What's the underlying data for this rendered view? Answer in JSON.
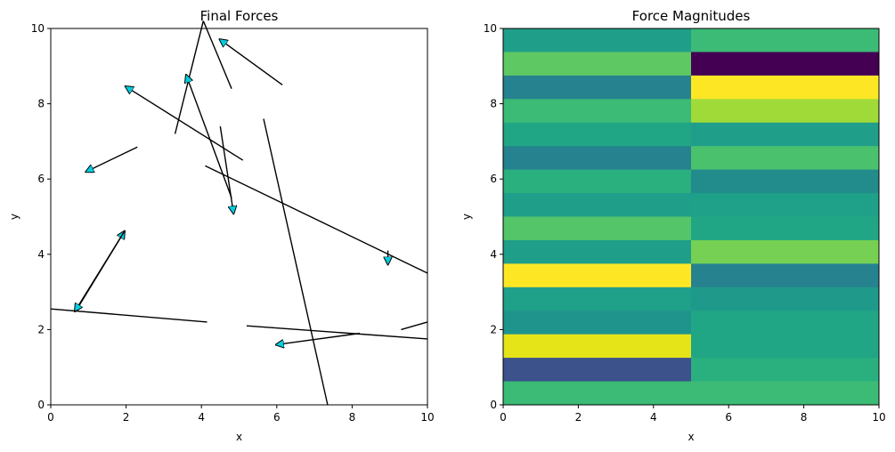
{
  "chart_data": [
    {
      "type": "quiver",
      "title": "Final Forces",
      "xlabel": "x",
      "ylabel": "y",
      "xlim": [
        0,
        10
      ],
      "ylim": [
        0,
        10
      ],
      "xticks": [
        0,
        2,
        4,
        6,
        8,
        10
      ],
      "yticks": [
        0,
        2,
        4,
        6,
        8,
        10
      ],
      "arrow_color": "#00cfe0",
      "arrows": [
        {
          "x1": 4.8,
          "y1": 8.4,
          "x2": 4.05,
          "y2": 10.2,
          "head": false
        },
        {
          "x1": 4.05,
          "y1": 10.2,
          "x2": 3.3,
          "y2": 7.2,
          "head": false
        },
        {
          "x1": 6.15,
          "y1": 8.5,
          "x2": 4.5,
          "y2": 9.7,
          "head": true
        },
        {
          "x1": 4.8,
          "y1": 5.5,
          "x2": 3.6,
          "y2": 8.75,
          "head": true
        },
        {
          "x1": 5.1,
          "y1": 6.5,
          "x2": 2.0,
          "y2": 8.45,
          "head": true
        },
        {
          "x1": 4.5,
          "y1": 7.4,
          "x2": 4.85,
          "y2": 5.1,
          "head": true
        },
        {
          "x1": 2.3,
          "y1": 6.85,
          "x2": 0.95,
          "y2": 6.2,
          "head": true
        },
        {
          "x1": 4.1,
          "y1": 6.35,
          "x2": 10.0,
          "y2": 3.5,
          "head": false
        },
        {
          "x1": 5.65,
          "y1": 7.6,
          "x2": 7.35,
          "y2": 0.0,
          "head": false
        },
        {
          "x1": 8.95,
          "y1": 4.1,
          "x2": 8.95,
          "y2": 3.75,
          "head": true
        },
        {
          "x1": 0.7,
          "y1": 2.55,
          "x2": 1.95,
          "y2": 4.6,
          "head": true
        },
        {
          "x1": 1.95,
          "y1": 4.6,
          "x2": 0.65,
          "y2": 2.5,
          "head": true
        },
        {
          "x1": 0.0,
          "y1": 2.55,
          "x2": 4.15,
          "y2": 2.2,
          "head": false
        },
        {
          "x1": 5.2,
          "y1": 2.1,
          "x2": 10.0,
          "y2": 1.75,
          "head": false
        },
        {
          "x1": 9.3,
          "y1": 2.0,
          "x2": 10.0,
          "y2": 2.2,
          "head": false
        },
        {
          "x1": 8.2,
          "y1": 1.9,
          "x2": 6.0,
          "y2": 1.6,
          "head": true
        }
      ]
    },
    {
      "type": "heatmap",
      "title": "Force Magnitudes",
      "xlabel": "x",
      "ylabel": "y",
      "xlim": [
        0,
        10
      ],
      "ylim": [
        0,
        10
      ],
      "xticks": [
        0,
        2,
        4,
        6,
        8,
        10
      ],
      "yticks": [
        0,
        2,
        4,
        6,
        8,
        10
      ],
      "rows": 16,
      "cols": 2,
      "colors_top_to_bottom": [
        [
          "#1f9e89",
          "#3bbb75"
        ],
        [
          "#5ec962",
          "#440154"
        ],
        [
          "#26828e",
          "#fde725"
        ],
        [
          "#3bbb75",
          "#a0da39"
        ],
        [
          "#21a685",
          "#1f9e89"
        ],
        [
          "#26828e",
          "#4ac16d"
        ],
        [
          "#2ab07f",
          "#228c8d"
        ],
        [
          "#1f9e89",
          "#1fa088"
        ],
        [
          "#54c568",
          "#21a685"
        ],
        [
          "#1f9e89",
          "#75d054"
        ],
        [
          "#fde725",
          "#26828e"
        ],
        [
          "#1fa088",
          "#1f9a8a"
        ],
        [
          "#1f948c",
          "#21a685"
        ],
        [
          "#e5e419",
          "#21a685"
        ],
        [
          "#3b528b",
          "#2ab07f"
        ],
        [
          "#3bbb75",
          "#3bbb75"
        ]
      ]
    }
  ]
}
